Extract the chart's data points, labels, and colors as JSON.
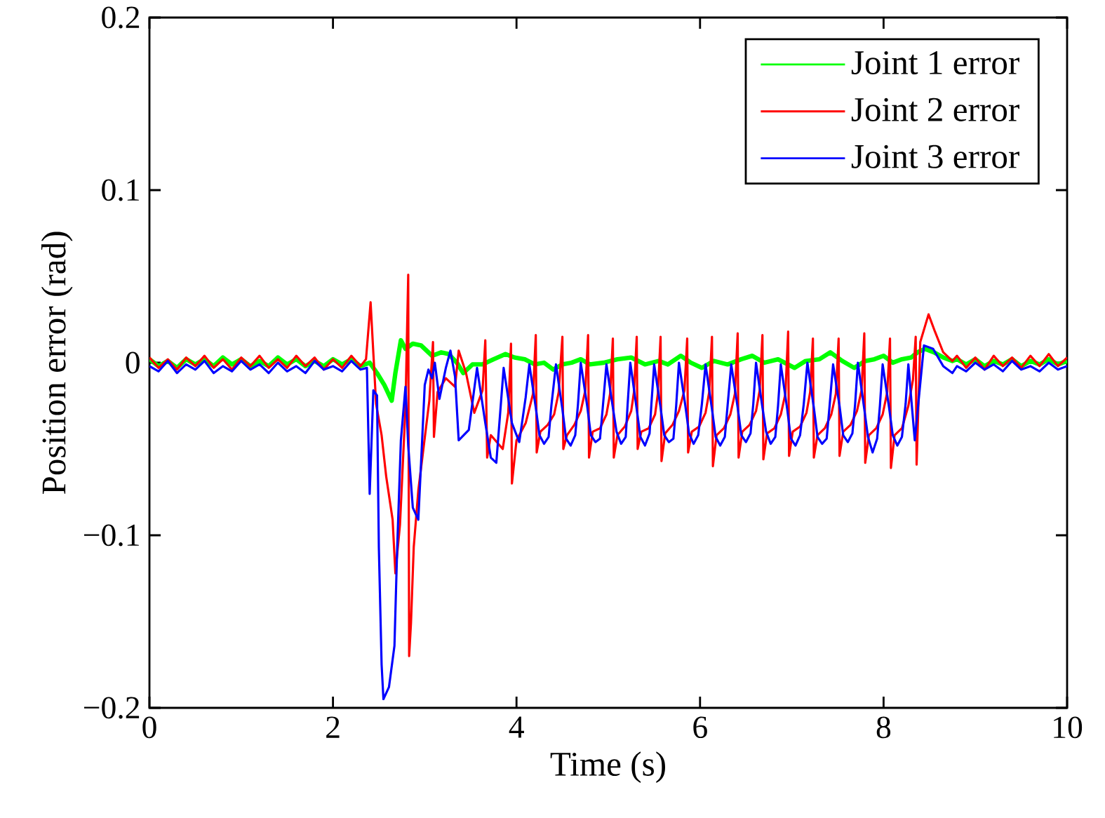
{
  "chart_data": {
    "type": "line",
    "xlabel": "Time (s)",
    "ylabel": "Position error (rad)",
    "xlim": [
      0,
      10
    ],
    "ylim": [
      -0.2,
      0.2
    ],
    "xticks": [
      0,
      2,
      4,
      6,
      8,
      10
    ],
    "yticks": [
      {
        "value": -0.2,
        "label": "−0.2"
      },
      {
        "value": -0.1,
        "label": "−0.1"
      },
      0,
      0.1,
      0.2
    ],
    "legend": "top right",
    "series": [
      {
        "name": "Joint 1 error",
        "color": "#00ff00",
        "x": [
          0.0,
          0.1,
          0.2,
          0.3,
          0.4,
          0.5,
          0.6,
          0.7,
          0.8,
          0.9,
          1.0,
          1.1,
          1.2,
          1.3,
          1.4,
          1.5,
          1.6,
          1.7,
          1.8,
          1.9,
          2.0,
          2.1,
          2.2,
          2.3,
          2.4,
          2.48,
          2.56,
          2.64,
          2.68,
          2.74,
          2.79,
          2.87,
          2.96,
          3.08,
          3.18,
          3.26,
          3.35,
          3.42,
          3.52,
          3.63,
          3.75,
          3.88,
          3.98,
          4.09,
          4.2,
          4.3,
          4.4,
          4.5,
          4.6,
          4.7,
          4.8,
          4.95,
          5.1,
          5.25,
          5.4,
          5.55,
          5.65,
          5.79,
          5.9,
          6.02,
          6.15,
          6.3,
          6.45,
          6.57,
          6.7,
          6.85,
          7.03,
          7.15,
          7.3,
          7.42,
          7.55,
          7.68,
          7.8,
          7.9,
          8.0,
          8.1,
          8.2,
          8.3,
          8.37,
          8.45,
          8.55,
          8.65,
          8.75,
          8.8,
          8.9,
          9.0,
          9.1,
          9.2,
          9.3,
          9.4,
          9.5,
          9.6,
          9.7,
          9.8,
          9.9,
          10.0
        ],
        "values": [
          0.002,
          -0.002,
          0.001,
          -0.003,
          0.002,
          -0.001,
          0.002,
          -0.002,
          0.003,
          -0.001,
          0.002,
          -0.002,
          0.001,
          -0.002,
          0.003,
          -0.001,
          0.002,
          -0.002,
          0.001,
          -0.002,
          0.002,
          -0.001,
          0.002,
          -0.002,
          0.0,
          -0.006,
          -0.013,
          -0.022,
          -0.006,
          0.013,
          0.008,
          0.011,
          0.01,
          0.004,
          0.006,
          0.005,
          0.0,
          -0.006,
          -0.001,
          -0.001,
          0.002,
          0.005,
          0.003,
          0.002,
          -0.001,
          0.0,
          -0.004,
          -0.001,
          0.0,
          0.002,
          -0.001,
          0.0,
          0.002,
          0.003,
          -0.001,
          0.001,
          -0.001,
          0.004,
          0.0,
          -0.003,
          0.001,
          -0.001,
          0.002,
          0.004,
          0.0,
          0.002,
          -0.003,
          0.001,
          0.002,
          0.006,
          0.001,
          -0.003,
          0.001,
          0.002,
          0.004,
          0.0,
          0.002,
          0.003,
          0.006,
          0.008,
          0.006,
          0.003,
          0.001,
          0.002,
          -0.001,
          0.002,
          -0.002,
          0.001,
          -0.001,
          0.002,
          -0.002,
          0.001,
          -0.001,
          0.002,
          -0.001,
          0.001
        ]
      },
      {
        "name": "Joint 2 error",
        "color": "#ff0000",
        "x": [
          0.0,
          0.1,
          0.2,
          0.3,
          0.4,
          0.5,
          0.6,
          0.7,
          0.8,
          0.9,
          1.0,
          1.1,
          1.2,
          1.3,
          1.4,
          1.5,
          1.6,
          1.7,
          1.8,
          1.9,
          2.0,
          2.1,
          2.2,
          2.3,
          2.36,
          2.41,
          2.47,
          2.53,
          2.58,
          2.65,
          2.68,
          2.73,
          2.79,
          2.82,
          2.83,
          2.85,
          2.88,
          2.93,
          2.99,
          3.05,
          3.09,
          3.1,
          3.14,
          3.23,
          3.33,
          3.37,
          3.45,
          3.54,
          3.63,
          3.66,
          3.68,
          3.72,
          3.85,
          3.91,
          3.94,
          3.95,
          4.0,
          4.1,
          4.18,
          4.21,
          4.22,
          4.26,
          4.34,
          4.41,
          4.46,
          4.5,
          4.51,
          4.55,
          4.63,
          4.7,
          4.75,
          4.78,
          4.79,
          4.83,
          4.91,
          4.98,
          5.02,
          5.05,
          5.06,
          5.1,
          5.18,
          5.25,
          5.28,
          5.31,
          5.32,
          5.36,
          5.44,
          5.51,
          5.54,
          5.57,
          5.58,
          5.62,
          5.7,
          5.77,
          5.83,
          5.86,
          5.87,
          5.91,
          5.99,
          6.06,
          6.1,
          6.13,
          6.14,
          6.18,
          6.26,
          6.33,
          6.38,
          6.41,
          6.42,
          6.46,
          6.54,
          6.61,
          6.65,
          6.68,
          6.69,
          6.73,
          6.81,
          6.88,
          6.93,
          6.96,
          6.97,
          7.01,
          7.09,
          7.16,
          7.2,
          7.23,
          7.24,
          7.28,
          7.36,
          7.43,
          7.48,
          7.51,
          7.52,
          7.56,
          7.64,
          7.71,
          7.76,
          7.79,
          7.8,
          7.84,
          7.92,
          7.99,
          8.04,
          8.07,
          8.08,
          8.12,
          8.2,
          8.27,
          8.32,
          8.35,
          8.36,
          8.4,
          8.49,
          8.56,
          8.65,
          8.75,
          8.8,
          8.9,
          9.0,
          9.1,
          9.2,
          9.3,
          9.4,
          9.5,
          9.6,
          9.7,
          9.8,
          9.9,
          10.0
        ],
        "values": [
          0.003,
          -0.003,
          0.002,
          -0.004,
          0.003,
          -0.002,
          0.004,
          -0.003,
          0.002,
          -0.004,
          0.003,
          -0.002,
          0.004,
          -0.003,
          0.002,
          -0.003,
          0.004,
          -0.002,
          0.003,
          -0.004,
          0.002,
          -0.003,
          0.004,
          -0.002,
          0.002,
          0.035,
          -0.024,
          -0.042,
          -0.066,
          -0.091,
          -0.122,
          -0.094,
          -0.026,
          0.051,
          -0.17,
          -0.151,
          -0.107,
          -0.074,
          -0.048,
          -0.022,
          0.012,
          -0.043,
          -0.017,
          -0.009,
          -0.014,
          0.007,
          -0.006,
          -0.029,
          -0.016,
          0.013,
          -0.055,
          -0.042,
          -0.05,
          -0.029,
          0.011,
          -0.07,
          -0.045,
          -0.035,
          -0.018,
          0.016,
          -0.052,
          -0.04,
          -0.036,
          -0.03,
          -0.017,
          0.015,
          -0.05,
          -0.042,
          -0.036,
          -0.028,
          -0.016,
          0.016,
          -0.055,
          -0.04,
          -0.038,
          -0.03,
          -0.018,
          0.014,
          -0.055,
          -0.042,
          -0.037,
          -0.028,
          -0.017,
          0.015,
          -0.05,
          -0.04,
          -0.038,
          -0.03,
          -0.018,
          0.015,
          -0.057,
          -0.041,
          -0.036,
          -0.028,
          -0.016,
          0.014,
          -0.052,
          -0.04,
          -0.037,
          -0.029,
          -0.017,
          0.015,
          -0.06,
          -0.042,
          -0.038,
          -0.03,
          -0.018,
          0.017,
          -0.055,
          -0.04,
          -0.036,
          -0.028,
          -0.016,
          0.016,
          -0.056,
          -0.041,
          -0.038,
          -0.03,
          -0.018,
          0.018,
          -0.054,
          -0.04,
          -0.037,
          -0.029,
          -0.017,
          0.014,
          -0.055,
          -0.042,
          -0.038,
          -0.03,
          -0.018,
          0.014,
          -0.054,
          -0.04,
          -0.036,
          -0.028,
          -0.016,
          0.017,
          -0.058,
          -0.042,
          -0.038,
          -0.03,
          -0.017,
          0.014,
          -0.061,
          -0.042,
          -0.038,
          -0.025,
          -0.01,
          0.015,
          -0.059,
          0.012,
          0.028,
          0.018,
          0.006,
          0.001,
          0.004,
          -0.003,
          0.003,
          -0.004,
          0.004,
          -0.002,
          0.003,
          -0.003,
          0.004,
          -0.002,
          0.005,
          -0.002,
          0.003
        ]
      },
      {
        "name": "Joint 3 error",
        "color": "#0000ff",
        "x": [
          0.0,
          0.1,
          0.2,
          0.3,
          0.4,
          0.5,
          0.6,
          0.7,
          0.8,
          0.9,
          1.0,
          1.1,
          1.2,
          1.3,
          1.4,
          1.5,
          1.6,
          1.7,
          1.8,
          1.9,
          2.0,
          2.1,
          2.2,
          2.3,
          2.37,
          2.4,
          2.44,
          2.48,
          2.5,
          2.53,
          2.55,
          2.61,
          2.67,
          2.7,
          2.74,
          2.79,
          2.82,
          2.87,
          2.93,
          2.96,
          3.0,
          3.04,
          3.08,
          3.11,
          3.16,
          3.23,
          3.28,
          3.33,
          3.37,
          3.48,
          3.57,
          3.66,
          3.72,
          3.78,
          3.86,
          3.95,
          4.03,
          4.1,
          4.14,
          4.21,
          4.25,
          4.3,
          4.35,
          4.38,
          4.43,
          4.5,
          4.54,
          4.59,
          4.64,
          4.67,
          4.7,
          4.77,
          4.81,
          4.86,
          4.91,
          4.94,
          4.98,
          5.05,
          5.09,
          5.14,
          5.19,
          5.21,
          5.24,
          5.31,
          5.35,
          5.4,
          5.45,
          5.47,
          5.5,
          5.57,
          5.61,
          5.66,
          5.71,
          5.74,
          5.77,
          5.84,
          5.88,
          5.93,
          5.98,
          6.02,
          6.06,
          6.13,
          6.17,
          6.22,
          6.27,
          6.3,
          6.34,
          6.41,
          6.45,
          6.5,
          6.55,
          6.58,
          6.61,
          6.68,
          6.72,
          6.77,
          6.82,
          6.85,
          6.88,
          6.95,
          6.99,
          7.04,
          7.09,
          7.13,
          7.17,
          7.24,
          7.28,
          7.33,
          7.38,
          7.41,
          7.45,
          7.52,
          7.56,
          7.61,
          7.66,
          7.69,
          7.72,
          7.79,
          7.83,
          7.88,
          7.93,
          7.96,
          7.99,
          8.06,
          8.1,
          8.15,
          8.2,
          8.24,
          8.27,
          8.34,
          8.44,
          8.54,
          8.65,
          8.75,
          8.8,
          8.9,
          9.0,
          9.1,
          9.2,
          9.3,
          9.4,
          9.5,
          9.6,
          9.7,
          9.8,
          9.9,
          10.0
        ],
        "values": [
          -0.002,
          -0.005,
          0.001,
          -0.006,
          -0.001,
          -0.004,
          0.001,
          -0.006,
          -0.002,
          -0.005,
          0.001,
          -0.004,
          -0.001,
          -0.006,
          0.0,
          -0.005,
          -0.002,
          -0.006,
          0.001,
          -0.004,
          -0.002,
          -0.005,
          0.001,
          -0.004,
          -0.003,
          -0.076,
          -0.016,
          -0.019,
          -0.107,
          -0.175,
          -0.195,
          -0.188,
          -0.164,
          -0.107,
          -0.045,
          -0.014,
          -0.048,
          -0.084,
          -0.091,
          -0.058,
          -0.013,
          -0.004,
          -0.009,
          0.0,
          -0.021,
          -0.003,
          0.007,
          -0.008,
          -0.045,
          -0.039,
          -0.003,
          -0.035,
          -0.055,
          -0.058,
          -0.003,
          -0.035,
          -0.046,
          -0.02,
          -0.001,
          -0.026,
          -0.042,
          -0.047,
          -0.043,
          -0.025,
          -0.001,
          -0.027,
          -0.044,
          -0.048,
          -0.042,
          -0.024,
          0.0,
          -0.025,
          -0.042,
          -0.046,
          -0.044,
          -0.026,
          -0.001,
          -0.026,
          -0.04,
          -0.047,
          -0.043,
          -0.025,
          0.0,
          -0.027,
          -0.043,
          -0.048,
          -0.041,
          -0.024,
          -0.001,
          -0.026,
          -0.042,
          -0.046,
          -0.044,
          -0.025,
          0.0,
          -0.025,
          -0.041,
          -0.047,
          -0.042,
          -0.024,
          -0.001,
          -0.027,
          -0.043,
          -0.048,
          -0.043,
          -0.025,
          -0.001,
          -0.026,
          -0.042,
          -0.046,
          -0.041,
          -0.024,
          0.0,
          -0.026,
          -0.04,
          -0.047,
          -0.043,
          -0.025,
          -0.001,
          -0.027,
          -0.044,
          -0.048,
          -0.042,
          -0.024,
          0.0,
          -0.026,
          -0.043,
          -0.047,
          -0.044,
          -0.026,
          -0.001,
          -0.025,
          -0.042,
          -0.046,
          -0.041,
          -0.024,
          0.0,
          -0.027,
          -0.043,
          -0.052,
          -0.044,
          -0.025,
          -0.001,
          -0.026,
          -0.042,
          -0.048,
          -0.043,
          -0.024,
          -0.001,
          -0.045,
          0.01,
          0.008,
          -0.002,
          -0.006,
          -0.002,
          -0.005,
          0.0,
          -0.004,
          -0.001,
          -0.005,
          0.001,
          -0.004,
          -0.002,
          -0.005,
          0.0,
          -0.004,
          -0.002
        ]
      }
    ]
  }
}
